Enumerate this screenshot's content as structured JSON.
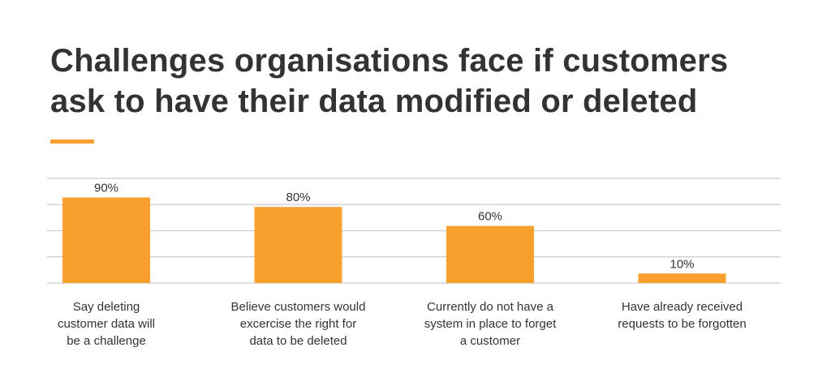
{
  "title_line1": "Challenges organisations face if customers",
  "title_line2": "ask to have their data modified or deleted",
  "colors": {
    "bar": "#F7A02D",
    "accent": "#F7A02D",
    "grid": "#CCCCCC",
    "text": "#333333"
  },
  "chart_data": {
    "type": "bar",
    "title": "Challenges organisations face if customers ask to have their data modified or deleted",
    "categories": [
      [
        "Say deleting",
        "customer data will",
        "be a challenge"
      ],
      [
        "Believe customers would",
        "excercise the right for",
        "data to be deleted"
      ],
      [
        "Currently do not have a",
        "system in place to forget",
        "a customer"
      ],
      [
        "Have already received",
        "requests to be forgotten"
      ]
    ],
    "values": [
      90,
      80,
      60,
      10
    ],
    "data_labels": [
      "90%",
      "80%",
      "60%",
      "10%"
    ],
    "ylim": [
      0,
      110
    ],
    "grid": true,
    "y_axis_labels": false
  }
}
